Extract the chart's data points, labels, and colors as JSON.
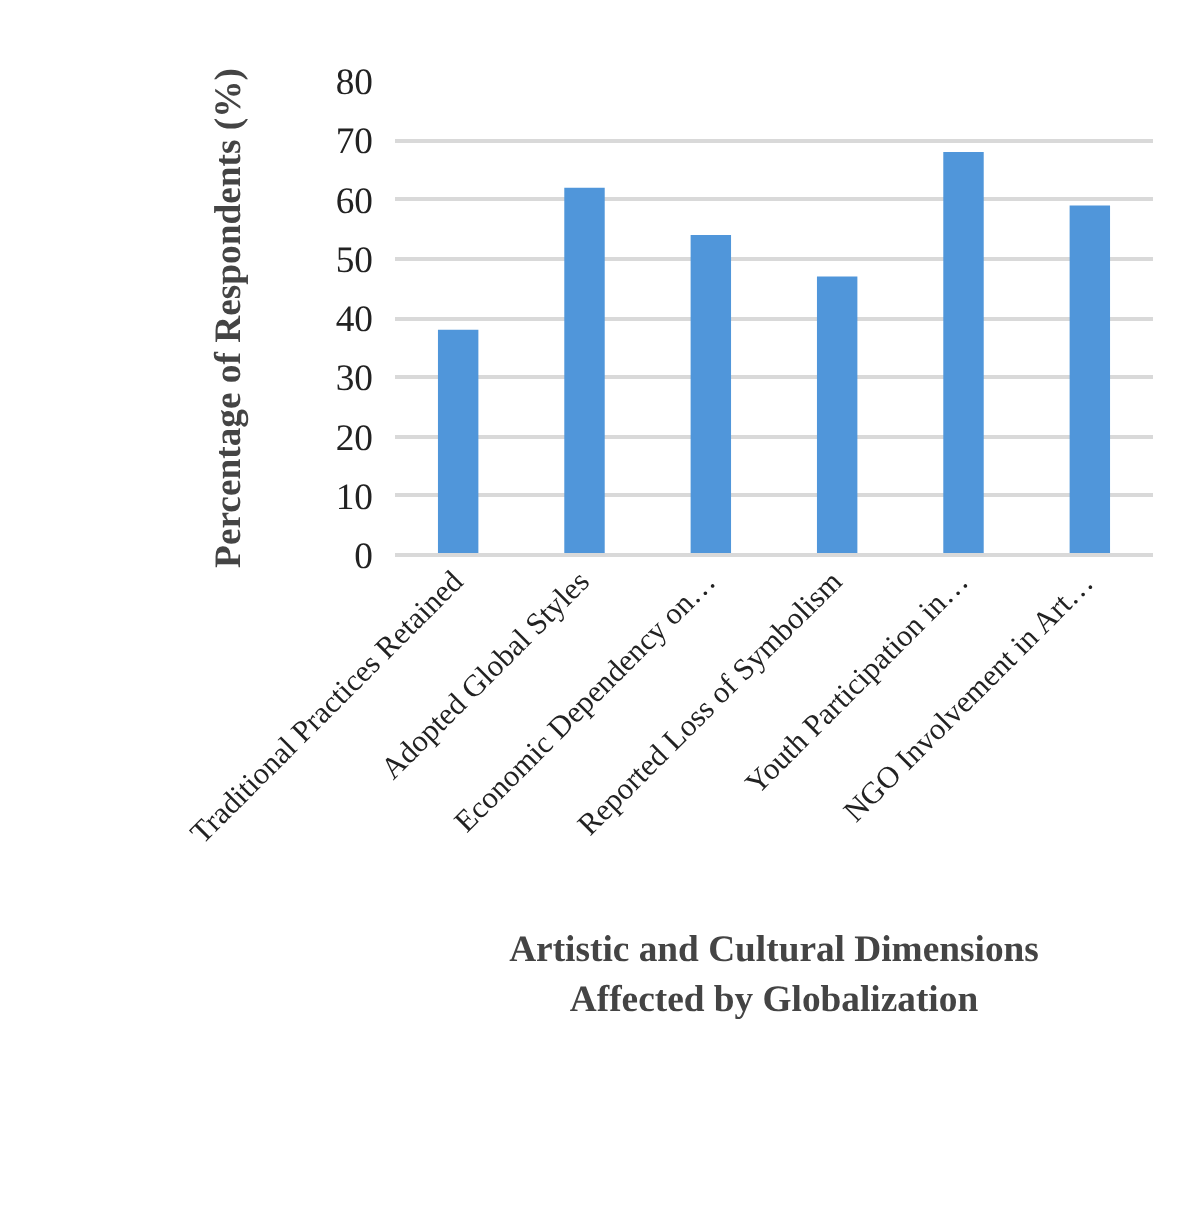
{
  "chart_data": {
    "type": "bar",
    "xlabel": "Artistic and Cultural Dimensions\nAffected by Globalization",
    "ylabel": "Percentage of Respondents (%)",
    "categories": [
      "Traditional Practices Retained",
      "Adopted Global Styles",
      "Economic Dependency on…",
      "Reported Loss of Symbolism",
      "Youth Participation in…",
      "NGO Involvement in Art…"
    ],
    "values": [
      38,
      62,
      54,
      47,
      68,
      59
    ],
    "color": "#5096da",
    "ylim": [
      0,
      80
    ],
    "yticks": [
      0,
      10,
      20,
      30,
      40,
      50,
      60,
      70,
      80
    ],
    "grid": "y"
  }
}
